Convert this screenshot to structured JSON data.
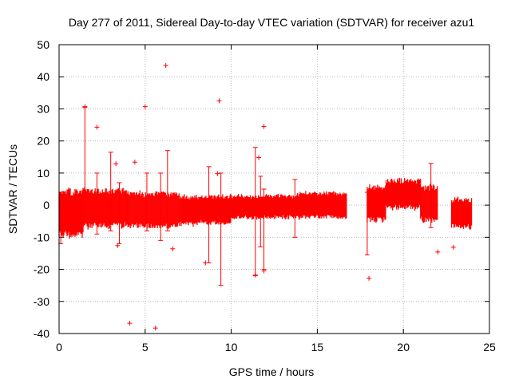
{
  "chart_data": {
    "type": "scatter",
    "title": "Day 277 of 2011, Sidereal Day-to-day VTEC variation (SDTVAR) for receiver azu1",
    "xlabel": "GPS time / hours",
    "ylabel": "SDTVAR / TECUs",
    "xlim": [
      0,
      25
    ],
    "ylim": [
      -40,
      50
    ],
    "xticks": [
      0,
      5,
      10,
      15,
      20,
      25
    ],
    "yticks": [
      -40,
      -30,
      -20,
      -10,
      0,
      10,
      20,
      30,
      40,
      50
    ],
    "grid": true,
    "color": "#ff0000",
    "marker": "plus",
    "series": [
      {
        "name": "azu1",
        "dense_bands": [
          {
            "x": [
              0.0,
              1.4
            ],
            "y_low": -10,
            "y_high": 5
          },
          {
            "x": [
              1.4,
              4.0
            ],
            "y_low": -7,
            "y_high": 5
          },
          {
            "x": [
              4.0,
              7.0
            ],
            "y_low": -7,
            "y_high": 4
          },
          {
            "x": [
              7.0,
              10.0
            ],
            "y_low": -6,
            "y_high": 3
          },
          {
            "x": [
              10.0,
              14.0
            ],
            "y_low": -4,
            "y_high": 3
          },
          {
            "x": [
              14.0,
              16.7
            ],
            "y_low": -4,
            "y_high": 4
          },
          {
            "x": [
              17.9,
              19.0
            ],
            "y_low": -5,
            "y_high": 6
          },
          {
            "x": [
              19.0,
              21.0
            ],
            "y_low": -1,
            "y_high": 8
          },
          {
            "x": [
              21.0,
              22.0
            ],
            "y_low": -5,
            "y_high": 6
          },
          {
            "x": [
              22.8,
              24.0
            ],
            "y_low": -7,
            "y_high": 2
          }
        ],
        "spikes": [
          {
            "x": 0.1,
            "y_low": -12,
            "y_high": 4
          },
          {
            "x": 1.5,
            "y_low": -3,
            "y_high": 30.5
          },
          {
            "x": 2.2,
            "y_low": -9,
            "y_high": 10
          },
          {
            "x": 3.0,
            "y_low": -8,
            "y_high": 16.5
          },
          {
            "x": 3.5,
            "y_low": -12,
            "y_high": 7
          },
          {
            "x": 5.1,
            "y_low": -8,
            "y_high": 10
          },
          {
            "x": 5.9,
            "y_low": -11,
            "y_high": 10
          },
          {
            "x": 6.3,
            "y_low": -8,
            "y_high": 17
          },
          {
            "x": 8.7,
            "y_low": -18,
            "y_high": 12
          },
          {
            "x": 9.4,
            "y_low": -25,
            "y_high": 10
          },
          {
            "x": 11.4,
            "y_low": -22,
            "y_high": 18
          },
          {
            "x": 11.7,
            "y_low": -13,
            "y_high": 9
          },
          {
            "x": 11.9,
            "y_low": -20,
            "y_high": 5
          },
          {
            "x": 13.7,
            "y_low": -10,
            "y_high": 8
          },
          {
            "x": 17.9,
            "y_low": -15.5,
            "y_high": 4
          },
          {
            "x": 21.6,
            "y_low": -7,
            "y_high": 13
          }
        ],
        "outliers": [
          [
            6.2,
            43.5
          ],
          [
            9.3,
            32.5
          ],
          [
            1.5,
            30.7
          ],
          [
            5.0,
            30.7
          ],
          [
            11.9,
            24.5
          ],
          [
            2.2,
            24.3
          ],
          [
            11.6,
            14.8
          ],
          [
            4.4,
            13.4
          ],
          [
            3.3,
            12.9
          ],
          [
            9.2,
            9.8
          ],
          [
            3.4,
            -12.6
          ],
          [
            6.6,
            -13.6
          ],
          [
            8.5,
            -18.0
          ],
          [
            11.4,
            -21.8
          ],
          [
            11.9,
            -20.5
          ],
          [
            18.0,
            -22.8
          ],
          [
            22.0,
            -14.6
          ],
          [
            22.9,
            -13.1
          ],
          [
            4.1,
            -36.8
          ],
          [
            5.6,
            -38.3
          ]
        ]
      }
    ]
  }
}
